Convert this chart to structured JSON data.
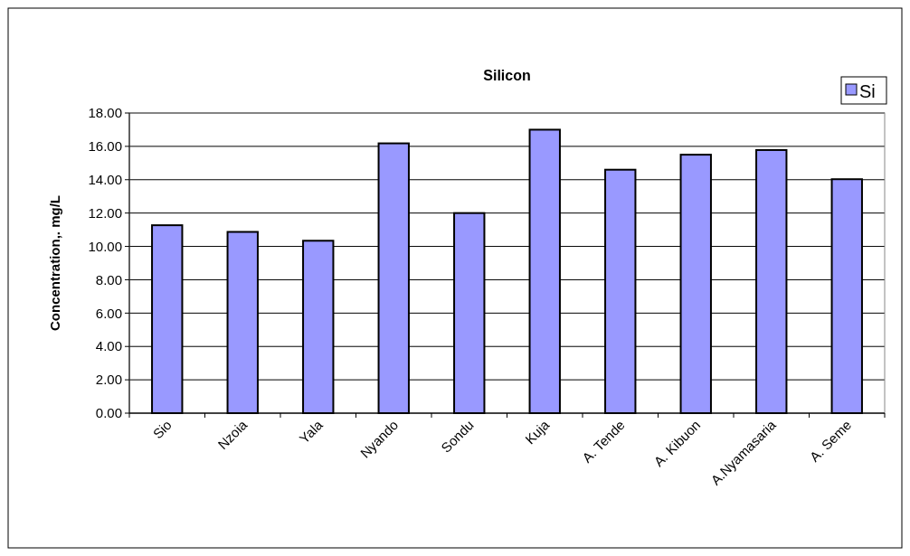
{
  "chart_data": {
    "type": "bar",
    "title": "Silicon",
    "ylabel": "Concentration,. mg/L",
    "categories": [
      "Sio",
      "Nzoia",
      "Yala",
      "Nyando",
      "Sondu",
      "Kuja",
      "A. Tende",
      "A. Kibuon",
      "A.Nyamasaria",
      "A. Seme"
    ],
    "series": [
      {
        "name": "Si",
        "color": "#9999ff",
        "values": [
          11.27,
          10.87,
          10.34,
          16.18,
          12.0,
          17.0,
          14.6,
          15.5,
          15.78,
          14.03
        ]
      }
    ],
    "ylim": [
      0,
      18
    ],
    "yticks": [
      {
        "value": 0,
        "label": "0.00"
      },
      {
        "value": 2,
        "label": "2.00"
      },
      {
        "value": 4,
        "label": "4.00"
      },
      {
        "value": 6,
        "label": "6.00"
      },
      {
        "value": 8,
        "label": "8.00"
      },
      {
        "value": 10,
        "label": "10.00"
      },
      {
        "value": 12,
        "label": "12.00"
      },
      {
        "value": 14,
        "label": "14.00"
      },
      {
        "value": 16,
        "label": "16.00"
      },
      {
        "value": 18,
        "label": "18.00"
      }
    ],
    "grid": "y",
    "legend": "top right"
  }
}
